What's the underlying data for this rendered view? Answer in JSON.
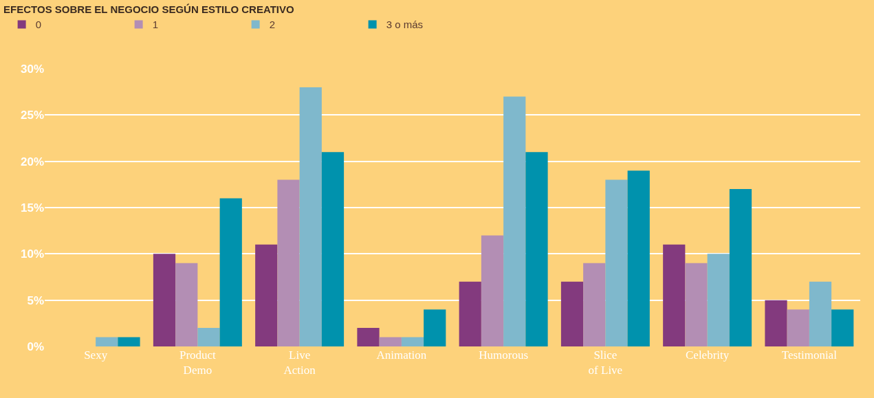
{
  "chart_data": {
    "type": "bar",
    "title": "EFECTOS SOBRE EL NEGOCIO SEGÚN ESTILO CREATIVO",
    "categories": [
      "Sexy",
      "Product Demo",
      "Live Action",
      "Animation",
      "Humorous",
      "Slice of Live",
      "Celebrity",
      "Testimonial"
    ],
    "series": [
      {
        "name": "0",
        "color": "#833a7e",
        "values": [
          0,
          10,
          11,
          2,
          7,
          7,
          11,
          5
        ]
      },
      {
        "name": "1",
        "color": "#b38eb4",
        "values": [
          0,
          9,
          18,
          1,
          12,
          9,
          9,
          4
        ]
      },
      {
        "name": "2",
        "color": "#7fb8cc",
        "values": [
          1,
          2,
          28,
          1,
          27,
          18,
          10,
          7
        ]
      },
      {
        "name": "3 o más",
        "color": "#0092ad",
        "values": [
          1,
          16,
          21,
          4,
          21,
          19,
          17,
          4
        ]
      }
    ],
    "ylim": [
      0,
      30
    ],
    "yticks": [
      {
        "value": 0,
        "label": "0%"
      },
      {
        "value": 5,
        "label": "5%"
      },
      {
        "value": 10,
        "label": "10%"
      },
      {
        "value": 15,
        "label": "15%"
      },
      {
        "value": 20,
        "label": "20%"
      },
      {
        "value": 25,
        "label": "25%"
      },
      {
        "value": 30,
        "label": "30%"
      }
    ],
    "grid": "y",
    "legend": "top left"
  }
}
